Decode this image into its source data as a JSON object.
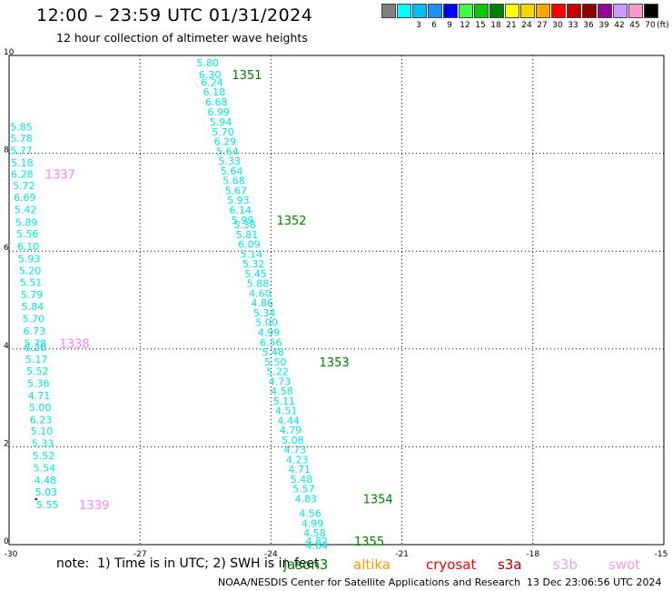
{
  "header": {
    "title": "12:00 – 23:59 UTC 01/31/2024",
    "subtitle": "12 hour collection of altimeter wave heights"
  },
  "colorbar": {
    "unit": "(ft)",
    "entries": [
      {
        "label": "",
        "color": "#808080"
      },
      {
        "label": "3",
        "color": "#00ffff"
      },
      {
        "label": "6",
        "color": "#00bfff"
      },
      {
        "label": "9",
        "color": "#1e90ff"
      },
      {
        "label": "12",
        "color": "#0000ff"
      },
      {
        "label": "15",
        "color": "#40ff40"
      },
      {
        "label": "18",
        "color": "#00cc00"
      },
      {
        "label": "21",
        "color": "#008000"
      },
      {
        "label": "24",
        "color": "#ffff00"
      },
      {
        "label": "27",
        "color": "#ffd700"
      },
      {
        "label": "30",
        "color": "#ffa500"
      },
      {
        "label": "33",
        "color": "#ff0000"
      },
      {
        "label": "36",
        "color": "#cc0000"
      },
      {
        "label": "39",
        "color": "#8b0000"
      },
      {
        "label": "42",
        "color": "#990099"
      },
      {
        "label": "45",
        "color": "#cc99ff"
      },
      {
        "label": "70",
        "color": "#ff99cc"
      },
      {
        "label": "",
        "color": "#000000"
      }
    ]
  },
  "footer": {
    "note": "note:  1) Time is in UTC; 2) SWH is in feet",
    "credit": "NOAA/NESDIS Center for Satellite Applications and Research",
    "timestamp": "13 Dec 23:06:56 UTC 2024",
    "satellites": [
      {
        "name": "jason3",
        "color": "#008000"
      },
      {
        "name": "altika",
        "color": "#ff9900"
      },
      {
        "name": "cryosat",
        "color": "#ff0000"
      },
      {
        "name": "s3a",
        "color": "#aa0000"
      },
      {
        "name": "s3b",
        "color": "#ccaaff"
      },
      {
        "name": "swot",
        "color": "#ff99cc"
      }
    ]
  },
  "chart_data": {
    "type": "scatter",
    "title": "12:00 – 23:59 UTC 01/31/2024",
    "xlim": [
      -30,
      -15
    ],
    "ylim": [
      0,
      10
    ],
    "xticks": [
      "-30",
      "-27",
      "-24",
      "-21",
      "-18",
      "-15"
    ],
    "yticks": [
      "0",
      "2",
      "4",
      "6",
      "8",
      "10"
    ],
    "grid": true,
    "value_color": "#00e5e5",
    "tracks": [
      {
        "values": [
          {
            "x": -29.72,
            "y": 8.54,
            "v": "5.85"
          },
          {
            "x": -29.72,
            "y": 8.31,
            "v": "5.78"
          },
          {
            "x": -29.72,
            "y": 8.06,
            "v": "5.77"
          },
          {
            "x": -29.7,
            "y": 7.81,
            "v": "5.18"
          },
          {
            "x": -29.7,
            "y": 7.57,
            "v": "6.28"
          },
          {
            "x": -29.66,
            "y": 7.34,
            "v": "5.72"
          },
          {
            "x": -29.64,
            "y": 7.1,
            "v": "6.69"
          },
          {
            "x": -29.62,
            "y": 6.85,
            "v": "5.42"
          },
          {
            "x": -29.6,
            "y": 6.59,
            "v": "5.89"
          },
          {
            "x": -29.58,
            "y": 6.36,
            "v": "5.56"
          },
          {
            "x": -29.56,
            "y": 6.1,
            "v": "6.10"
          },
          {
            "x": -29.54,
            "y": 5.85,
            "v": "5.93"
          },
          {
            "x": -29.52,
            "y": 5.6,
            "v": "5.20"
          },
          {
            "x": -29.5,
            "y": 5.36,
            "v": "5.51"
          },
          {
            "x": -29.48,
            "y": 5.11,
            "v": "5.79"
          },
          {
            "x": -29.46,
            "y": 4.87,
            "v": "5.84"
          },
          {
            "x": -29.44,
            "y": 4.62,
            "v": "5.70"
          },
          {
            "x": -29.42,
            "y": 4.37,
            "v": "6.73"
          },
          {
            "x": -29.4,
            "y": 4.12,
            "v": "5.78"
          },
          {
            "x": -29.4,
            "y": 4.03,
            "v": "6.26"
          },
          {
            "x": -29.37,
            "y": 3.79,
            "v": "5.17"
          },
          {
            "x": -29.35,
            "y": 3.55,
            "v": "5.52"
          },
          {
            "x": -29.33,
            "y": 3.3,
            "v": "5.36"
          },
          {
            "x": -29.31,
            "y": 3.05,
            "v": "4.71"
          },
          {
            "x": -29.29,
            "y": 2.81,
            "v": "5.00"
          },
          {
            "x": -29.27,
            "y": 2.56,
            "v": "6.23"
          },
          {
            "x": -29.25,
            "y": 2.32,
            "v": "5.10"
          },
          {
            "x": -29.23,
            "y": 2.07,
            "v": "5.33"
          },
          {
            "x": -29.21,
            "y": 1.82,
            "v": "5.52"
          },
          {
            "x": -29.19,
            "y": 1.57,
            "v": "5.54"
          },
          {
            "x": -29.17,
            "y": 1.32,
            "v": "4.48"
          },
          {
            "x": -29.15,
            "y": 1.08,
            "v": "5.03"
          },
          {
            "x": -29.12,
            "y": 0.82,
            "v": "5.55"
          }
        ],
        "labels": [
          {
            "x": -28.83,
            "y": 7.57,
            "text": "1337",
            "color": "#ff80ff"
          },
          {
            "x": -28.5,
            "y": 4.12,
            "text": "1338",
            "color": "#ff80ff"
          },
          {
            "x": -28.05,
            "y": 0.82,
            "text": "1339",
            "color": "#ff80ff"
          }
        ]
      },
      {
        "values": [
          {
            "x": -25.45,
            "y": 9.85,
            "v": "5.80"
          },
          {
            "x": -25.4,
            "y": 9.61,
            "v": "6.30"
          },
          {
            "x": -25.35,
            "y": 9.45,
            "v": "6.24"
          },
          {
            "x": -25.3,
            "y": 9.26,
            "v": "6.18"
          },
          {
            "x": -25.25,
            "y": 9.05,
            "v": "6.68"
          },
          {
            "x": -25.2,
            "y": 8.85,
            "v": "6.99"
          },
          {
            "x": -25.15,
            "y": 8.64,
            "v": "5.94"
          },
          {
            "x": -25.1,
            "y": 8.44,
            "v": "5.70"
          },
          {
            "x": -25.05,
            "y": 8.24,
            "v": "6.29"
          },
          {
            "x": -25.0,
            "y": 8.04,
            "v": "5.64"
          },
          {
            "x": -24.95,
            "y": 7.84,
            "v": "5.33"
          },
          {
            "x": -24.9,
            "y": 7.64,
            "v": "5.64"
          },
          {
            "x": -24.85,
            "y": 7.44,
            "v": "5.68"
          },
          {
            "x": -24.8,
            "y": 7.24,
            "v": "5.67"
          },
          {
            "x": -24.75,
            "y": 7.04,
            "v": "5.93"
          },
          {
            "x": -24.7,
            "y": 6.84,
            "v": "6.14"
          },
          {
            "x": -24.65,
            "y": 6.64,
            "v": "5.99"
          },
          {
            "x": -24.6,
            "y": 6.54,
            "v": "5.38"
          },
          {
            "x": -24.55,
            "y": 6.34,
            "v": "5.81"
          },
          {
            "x": -24.5,
            "y": 6.14,
            "v": "6.09"
          },
          {
            "x": -24.45,
            "y": 5.94,
            "v": "5.14"
          },
          {
            "x": -24.4,
            "y": 5.74,
            "v": "5.32"
          },
          {
            "x": -24.35,
            "y": 5.54,
            "v": "5.45"
          },
          {
            "x": -24.3,
            "y": 5.34,
            "v": "5.88"
          },
          {
            "x": -24.25,
            "y": 5.14,
            "v": "4.60"
          },
          {
            "x": -24.2,
            "y": 4.94,
            "v": "4.86"
          },
          {
            "x": -24.15,
            "y": 4.74,
            "v": "5.34"
          },
          {
            "x": -24.1,
            "y": 4.54,
            "v": "5.00"
          },
          {
            "x": -24.05,
            "y": 4.34,
            "v": "4.99"
          },
          {
            "x": -24.0,
            "y": 4.14,
            "v": "6.56"
          },
          {
            "x": -23.95,
            "y": 3.94,
            "v": "5.48"
          },
          {
            "x": -23.9,
            "y": 3.74,
            "v": "5.50"
          },
          {
            "x": -23.85,
            "y": 3.54,
            "v": "5.22"
          },
          {
            "x": -23.8,
            "y": 3.34,
            "v": "4.73"
          },
          {
            "x": -23.75,
            "y": 3.14,
            "v": "4.58"
          },
          {
            "x": -23.7,
            "y": 2.94,
            "v": "5.11"
          },
          {
            "x": -23.65,
            "y": 2.74,
            "v": "4.51"
          },
          {
            "x": -23.6,
            "y": 2.54,
            "v": "4.44"
          },
          {
            "x": -23.55,
            "y": 2.34,
            "v": "4.79"
          },
          {
            "x": -23.5,
            "y": 2.14,
            "v": "5.08"
          },
          {
            "x": -23.45,
            "y": 1.94,
            "v": "4.73"
          },
          {
            "x": -23.4,
            "y": 1.74,
            "v": "4.23"
          },
          {
            "x": -23.35,
            "y": 1.54,
            "v": "4.71"
          },
          {
            "x": -23.3,
            "y": 1.34,
            "v": "5.48"
          },
          {
            "x": -23.25,
            "y": 1.14,
            "v": "5.57"
          },
          {
            "x": -23.2,
            "y": 0.94,
            "v": "4.83"
          },
          {
            "x": -23.1,
            "y": 0.64,
            "v": "4.56"
          },
          {
            "x": -23.05,
            "y": 0.44,
            "v": "4.99"
          },
          {
            "x": -23.0,
            "y": 0.24,
            "v": "4.58"
          },
          {
            "x": -22.95,
            "y": 0.07,
            "v": "4.82"
          },
          {
            "x": -22.95,
            "y": -0.02,
            "v": "4.64"
          }
        ],
        "labels": [
          {
            "x": -24.55,
            "y": 9.61,
            "text": "1351",
            "color": "#008000"
          },
          {
            "x": -23.53,
            "y": 6.64,
            "text": "1352",
            "color": "#008000"
          },
          {
            "x": -22.55,
            "y": 3.74,
            "text": "1353",
            "color": "#008000"
          },
          {
            "x": -21.55,
            "y": 0.94,
            "text": "1354",
            "color": "#008000"
          },
          {
            "x": -21.75,
            "y": 0.07,
            "text": "1355",
            "color": "#008000"
          }
        ]
      }
    ],
    "markers": [
      {
        "x": -29.38,
        "y": 0.93
      }
    ]
  }
}
